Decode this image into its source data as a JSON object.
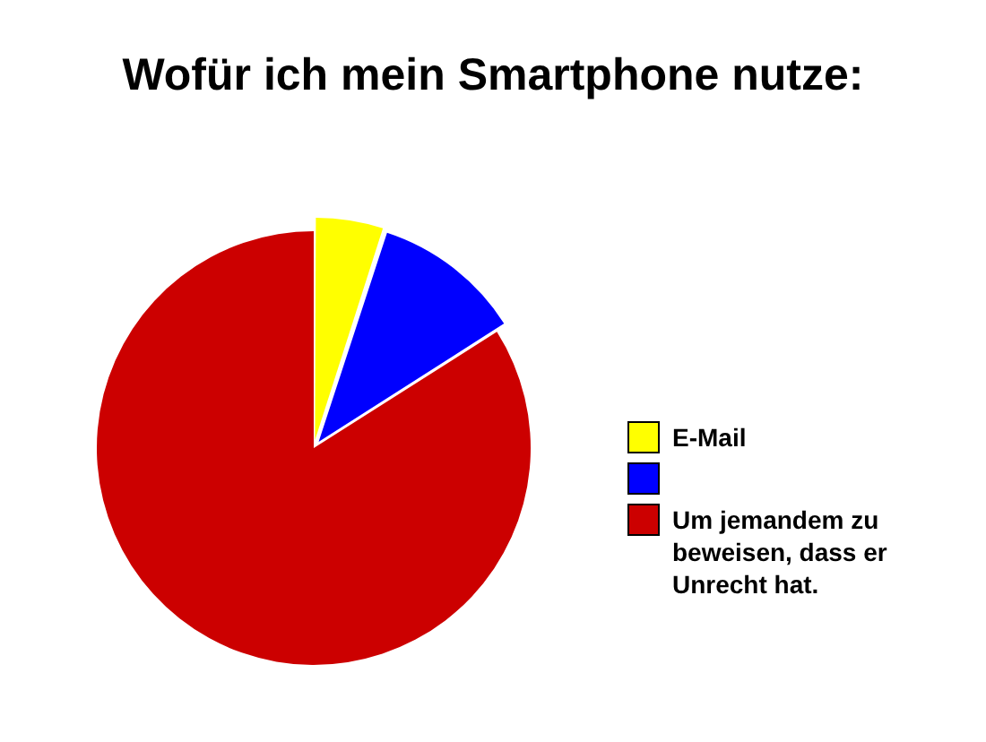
{
  "chart_data": {
    "type": "pie",
    "title": "Wofür ich mein Smartphone nutze:",
    "categories": [
      "E-Mail",
      null,
      "Um jemandem zu beweisen, dass er Unrecht hat."
    ],
    "values": [
      5,
      11,
      84
    ],
    "colors": [
      "#ffff00",
      "#0000ff",
      "#cc0000"
    ],
    "legend": "right"
  }
}
